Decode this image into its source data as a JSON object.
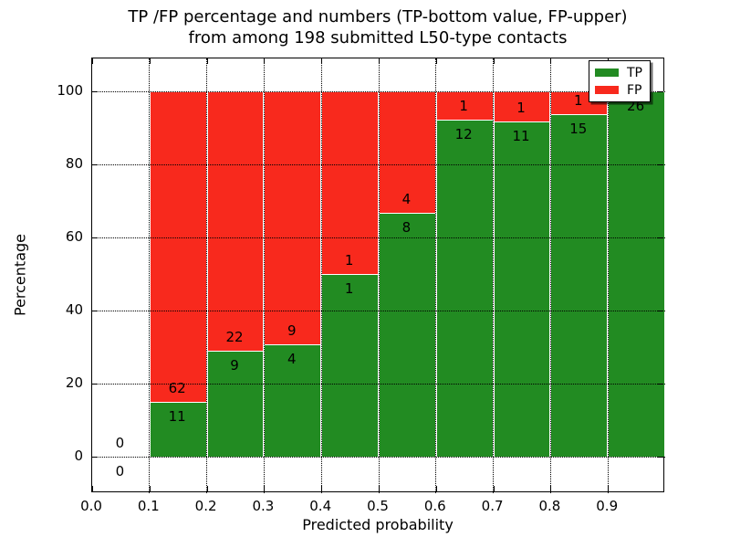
{
  "title": {
    "line1": "TP /FP percentage and numbers (TP-bottom value, FP-upper)",
    "line2": "from among 198 submitted L50-type contacts"
  },
  "chart_data": {
    "type": "bar",
    "stacked": true,
    "normalized_to_percent": true,
    "title": "TP /FP percentage and numbers (TP-bottom value, FP-upper) from among 198 submitted L50-type contacts",
    "total_contacts": 198,
    "xlabel": "Predicted probability",
    "ylabel": "Percentage",
    "xlim": [
      0.0,
      1.0
    ],
    "ylim": [
      -10,
      109
    ],
    "grid": "dotted",
    "legend_position": "upper right",
    "bin_width": 0.1,
    "bins": [
      {
        "x0": 0.0,
        "x1": 0.1,
        "tp": 0,
        "fp": 0
      },
      {
        "x0": 0.1,
        "x1": 0.2,
        "tp": 11,
        "fp": 62
      },
      {
        "x0": 0.2,
        "x1": 0.3,
        "tp": 9,
        "fp": 22
      },
      {
        "x0": 0.3,
        "x1": 0.4,
        "tp": 4,
        "fp": 9
      },
      {
        "x0": 0.4,
        "x1": 0.5,
        "tp": 1,
        "fp": 1
      },
      {
        "x0": 0.5,
        "x1": 0.6,
        "tp": 8,
        "fp": 4
      },
      {
        "x0": 0.6,
        "x1": 0.7,
        "tp": 12,
        "fp": 1
      },
      {
        "x0": 0.7,
        "x1": 0.8,
        "tp": 11,
        "fp": 1
      },
      {
        "x0": 0.8,
        "x1": 0.9,
        "tp": 15,
        "fp": 1
      },
      {
        "x0": 0.9,
        "x1": 1.0,
        "tp": 26,
        "fp": 0
      }
    ],
    "x_ticks": [
      {
        "v": 0.0,
        "label": "0.0"
      },
      {
        "v": 0.1,
        "label": "0.1"
      },
      {
        "v": 0.2,
        "label": "0.2"
      },
      {
        "v": 0.3,
        "label": "0.3"
      },
      {
        "v": 0.4,
        "label": "0.4"
      },
      {
        "v": 0.5,
        "label": "0.5"
      },
      {
        "v": 0.6,
        "label": "0.6"
      },
      {
        "v": 0.7,
        "label": "0.7"
      },
      {
        "v": 0.8,
        "label": "0.8"
      },
      {
        "v": 0.9,
        "label": "0.9"
      }
    ],
    "y_ticks": [
      {
        "v": 0,
        "label": "0"
      },
      {
        "v": 20,
        "label": "20"
      },
      {
        "v": 40,
        "label": "40"
      },
      {
        "v": 60,
        "label": "60"
      },
      {
        "v": 80,
        "label": "80"
      },
      {
        "v": 100,
        "label": "100"
      }
    ],
    "x_gridlines": [
      0.1,
      0.2,
      0.3,
      0.4,
      0.5,
      0.6,
      0.7,
      0.8,
      0.9
    ],
    "y_gridlines": [
      0,
      20,
      40,
      60,
      80,
      100
    ],
    "series": [
      {
        "name": "TP",
        "color": "#228B22",
        "values": [
          0,
          11,
          9,
          4,
          1,
          8,
          12,
          11,
          15,
          26
        ]
      },
      {
        "name": "FP",
        "color": "#F8291D",
        "values": [
          0,
          62,
          22,
          9,
          1,
          4,
          1,
          1,
          1,
          0
        ]
      }
    ],
    "legend": {
      "entries": [
        {
          "label": "TP",
          "color": "#228B22"
        },
        {
          "label": "FP",
          "color": "#F8291D"
        }
      ]
    }
  }
}
